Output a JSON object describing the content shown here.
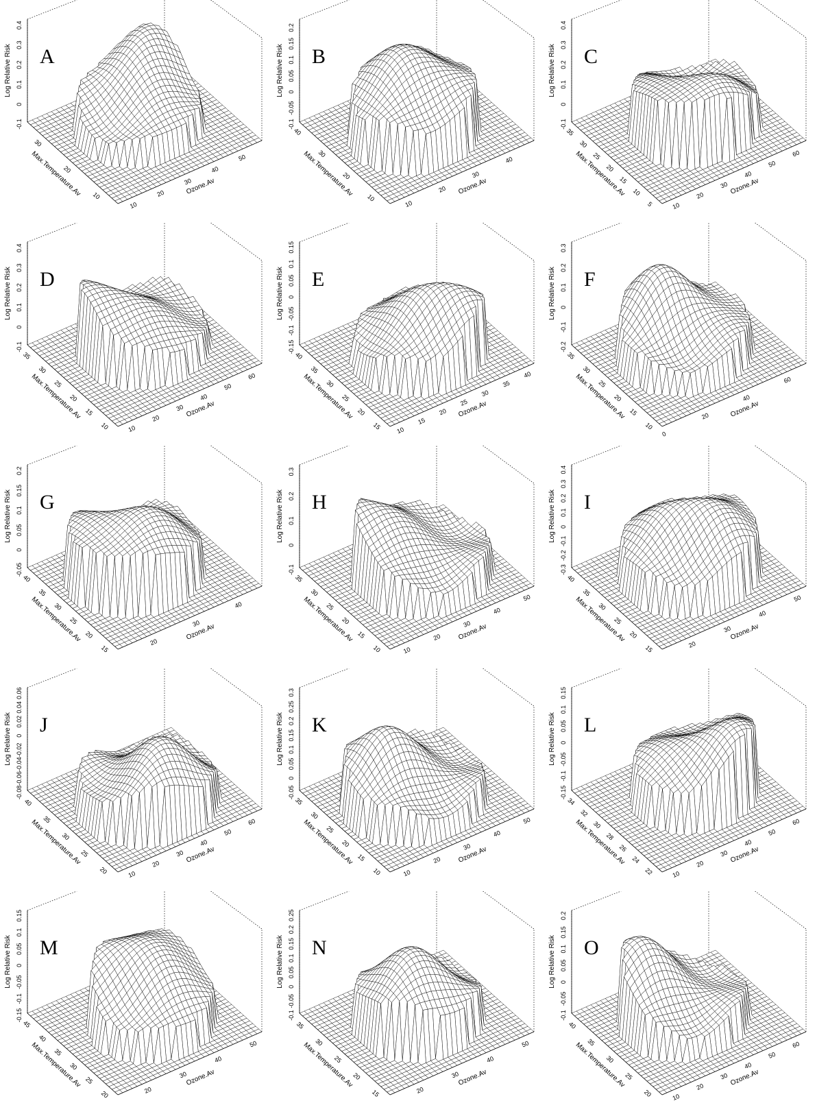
{
  "figure": {
    "z_axis_label": "Log Relative Risk",
    "x_axis_label": "Ozone.Av",
    "y_axis_label": "Max.Temperature.Av"
  },
  "chart_data": [
    {
      "type": "surface3d",
      "panel": "A",
      "xlabel": "Ozone.Av",
      "ylabel": "Max.Temperature.Av",
      "zlabel": "Log Relative Risk",
      "x_ticks": [
        "10",
        "20",
        "30",
        "40",
        "50"
      ],
      "y_ticks": [
        "10",
        "20",
        "30"
      ],
      "z_ticks": [
        "-0.1",
        "0",
        "0.1",
        "0.2",
        "0.3",
        "0.4"
      ],
      "xlim": [
        5,
        58
      ],
      "ylim": [
        5,
        36
      ],
      "zlim": [
        -0.1,
        0.42
      ]
    },
    {
      "type": "surface3d",
      "panel": "B",
      "xlabel": "Ozone.Av",
      "ylabel": "Max.Temperature.Av",
      "zlabel": "Log Relative Risk",
      "x_ticks": [
        "10",
        "20",
        "30",
        "40"
      ],
      "y_ticks": [
        "10",
        "20",
        "30",
        "40"
      ],
      "z_ticks": [
        "-0.1",
        "-0.05",
        "0",
        "0.05",
        "0.1",
        "0.15",
        "0.2"
      ],
      "xlim": [
        5,
        48
      ],
      "ylim": [
        5,
        42
      ],
      "zlim": [
        -0.1,
        0.22
      ]
    },
    {
      "type": "surface3d",
      "panel": "C",
      "xlabel": "Ozone.Av",
      "ylabel": "Max.Temperature.Av",
      "zlabel": "Log Relative Risk",
      "x_ticks": [
        "10",
        "20",
        "30",
        "40",
        "50",
        "60"
      ],
      "y_ticks": [
        "5",
        "10",
        "15",
        "20",
        "25",
        "30",
        "35"
      ],
      "z_ticks": [
        "-0.1",
        "0",
        "0.1",
        "0.2",
        "0.3",
        "0.4"
      ],
      "xlim": [
        5,
        65
      ],
      "ylim": [
        3,
        37
      ],
      "zlim": [
        -0.1,
        0.42
      ]
    },
    {
      "type": "surface3d",
      "panel": "D",
      "xlabel": "Ozone.Av",
      "ylabel": "Max.Temperature.Av",
      "zlabel": "Log Relative Risk",
      "x_ticks": [
        "10",
        "20",
        "30",
        "40",
        "50",
        "60"
      ],
      "y_ticks": [
        "10",
        "15",
        "20",
        "25",
        "30",
        "35"
      ],
      "z_ticks": [
        "-0.1",
        "0",
        "0.1",
        "0.2",
        "0.3",
        "0.4"
      ],
      "xlim": [
        5,
        65
      ],
      "ylim": [
        8,
        37
      ],
      "zlim": [
        -0.1,
        0.42
      ]
    },
    {
      "type": "surface3d",
      "panel": "E",
      "xlabel": "Ozone.Av",
      "ylabel": "Max.Temperature.Av",
      "zlabel": "Log Relative Risk",
      "x_ticks": [
        "10",
        "15",
        "20",
        "25",
        "30",
        "35",
        "40"
      ],
      "y_ticks": [
        "15",
        "20",
        "25",
        "30",
        "35",
        "40"
      ],
      "z_ticks": [
        "-0.15",
        "-0.1",
        "-0.05",
        "0",
        "0.05",
        "0.1",
        "0.15"
      ],
      "xlim": [
        8,
        42
      ],
      "ylim": [
        13,
        42
      ],
      "zlim": [
        -0.15,
        0.16
      ]
    },
    {
      "type": "surface3d",
      "panel": "F",
      "xlabel": "Ozone.Av",
      "ylabel": "Max.Temperature.Av",
      "zlabel": "Log Relative Risk",
      "x_ticks": [
        "0",
        "20",
        "40",
        "60"
      ],
      "y_ticks": [
        "10",
        "15",
        "20",
        "25",
        "30",
        "35"
      ],
      "z_ticks": [
        "-0.2",
        "-0.1",
        "0",
        "0.1",
        "0.2",
        "0.3"
      ],
      "xlim": [
        0,
        70
      ],
      "ylim": [
        8,
        37
      ],
      "zlim": [
        -0.2,
        0.32
      ]
    },
    {
      "type": "surface3d",
      "panel": "G",
      "xlabel": "Ozone.Av",
      "ylabel": "Max.Temperature.Av",
      "zlabel": "Log Relative Risk",
      "x_ticks": [
        "20",
        "30",
        "40"
      ],
      "y_ticks": [
        "15",
        "20",
        "25",
        "30",
        "35",
        "40"
      ],
      "z_ticks": [
        "-0.05",
        "0",
        "0.05",
        "0.1",
        "0.15",
        "0.2"
      ],
      "xlim": [
        12,
        46
      ],
      "ylim": [
        13,
        42
      ],
      "zlim": [
        -0.05,
        0.21
      ]
    },
    {
      "type": "surface3d",
      "panel": "H",
      "xlabel": "Ozone.Av",
      "ylabel": "Max.Temperature.Av",
      "zlabel": "Log Relative Risk",
      "x_ticks": [
        "10",
        "20",
        "30",
        "40",
        "50"
      ],
      "y_ticks": [
        "10",
        "15",
        "20",
        "25",
        "30",
        "35"
      ],
      "z_ticks": [
        "-0.1",
        "0",
        "0.1",
        "0.2",
        "0.3"
      ],
      "xlim": [
        5,
        53
      ],
      "ylim": [
        8,
        37
      ],
      "zlim": [
        -0.1,
        0.32
      ]
    },
    {
      "type": "surface3d",
      "panel": "I",
      "xlabel": "Ozone.Av",
      "ylabel": "Max.Temperature.Av",
      "zlabel": "Log Relative Risk",
      "x_ticks": [
        "20",
        "30",
        "40",
        "50"
      ],
      "y_ticks": [
        "15",
        "20",
        "25",
        "30",
        "35",
        "40"
      ],
      "z_ticks": [
        "-0.3",
        "-0.2",
        "-0.1",
        "0",
        "0.1",
        "0.2",
        "0.3",
        "0.4"
      ],
      "xlim": [
        12,
        53
      ],
      "ylim": [
        13,
        42
      ],
      "zlim": [
        -0.3,
        0.42
      ]
    },
    {
      "type": "surface3d",
      "panel": "J",
      "xlabel": "Ozone.Av",
      "ylabel": "Max.Temperature.Av",
      "zlabel": "Log Relative Risk",
      "x_ticks": [
        "10",
        "20",
        "30",
        "40",
        "50",
        "60"
      ],
      "y_ticks": [
        "20",
        "25",
        "30",
        "35",
        "40"
      ],
      "z_ticks": [
        "-0.08",
        "-0.06",
        "-0.04",
        "-0.02",
        "0",
        "0.02",
        "0.04",
        "0.06"
      ],
      "xlim": [
        5,
        65
      ],
      "ylim": [
        18,
        42
      ],
      "zlim": [
        -0.08,
        0.065
      ]
    },
    {
      "type": "surface3d",
      "panel": "K",
      "xlabel": "Ozone.Av",
      "ylabel": "Max.Temperature.Av",
      "zlabel": "Log Relative Risk",
      "x_ticks": [
        "10",
        "20",
        "30",
        "40",
        "50"
      ],
      "y_ticks": [
        "10",
        "15",
        "20",
        "25",
        "30",
        "35"
      ],
      "z_ticks": [
        "-0.05",
        "0",
        "0.05",
        "0.1",
        "0.15",
        "0.2",
        "0.25",
        "0.3"
      ],
      "xlim": [
        5,
        53
      ],
      "ylim": [
        8,
        37
      ],
      "zlim": [
        -0.05,
        0.31
      ]
    },
    {
      "type": "surface3d",
      "panel": "L",
      "xlabel": "Ozone.Av",
      "ylabel": "Max.Temperature.Av",
      "zlabel": "Log Relative Risk",
      "x_ticks": [
        "10",
        "20",
        "30",
        "40",
        "50",
        "60"
      ],
      "y_ticks": [
        "22",
        "24",
        "26",
        "28",
        "30",
        "32",
        "34"
      ],
      "z_ticks": [
        "-0.15",
        "-0.1",
        "-0.05",
        "0",
        "0.05",
        "0.1",
        "0.15"
      ],
      "xlim": [
        5,
        65
      ],
      "ylim": [
        21,
        35
      ],
      "zlim": [
        -0.15,
        0.16
      ]
    },
    {
      "type": "surface3d",
      "panel": "M",
      "xlabel": "Ozone.Av",
      "ylabel": "Max.Temperature.Av",
      "zlabel": "Log Relative Risk",
      "x_ticks": [
        "20",
        "30",
        "40",
        "50"
      ],
      "y_ticks": [
        "20",
        "25",
        "30",
        "35",
        "40",
        "45"
      ],
      "z_ticks": [
        "-0.15",
        "-0.1",
        "-0.05",
        "0",
        "0.05",
        "0.1",
        "0.15"
      ],
      "xlim": [
        12,
        53
      ],
      "ylim": [
        18,
        47
      ],
      "zlim": [
        -0.15,
        0.16
      ]
    },
    {
      "type": "surface3d",
      "panel": "N",
      "xlabel": "Ozone.Av",
      "ylabel": "Max.Temperature.Av",
      "zlabel": "Log Relative Risk",
      "x_ticks": [
        "20",
        "30",
        "40",
        "50"
      ],
      "y_ticks": [
        "15",
        "20",
        "25",
        "30",
        "35"
      ],
      "z_ticks": [
        "-0.1",
        "-0.05",
        "0",
        "0.05",
        "0.1",
        "0.15",
        "0.2",
        "0.25"
      ],
      "xlim": [
        12,
        53
      ],
      "ylim": [
        13,
        37
      ],
      "zlim": [
        -0.1,
        0.26
      ]
    },
    {
      "type": "surface3d",
      "panel": "O",
      "xlabel": "Ozone.Av",
      "ylabel": "Max.Temperature.Av",
      "zlabel": "Log Relative Risk",
      "x_ticks": [
        "10",
        "20",
        "30",
        "40",
        "50",
        "60"
      ],
      "y_ticks": [
        "20",
        "25",
        "30",
        "35",
        "40"
      ],
      "z_ticks": [
        "-0.1",
        "-0.05",
        "0",
        "0.05",
        "0.1",
        "0.15",
        "0.2"
      ],
      "xlim": [
        5,
        65
      ],
      "ylim": [
        18,
        42
      ],
      "zlim": [
        -0.1,
        0.21
      ]
    }
  ]
}
